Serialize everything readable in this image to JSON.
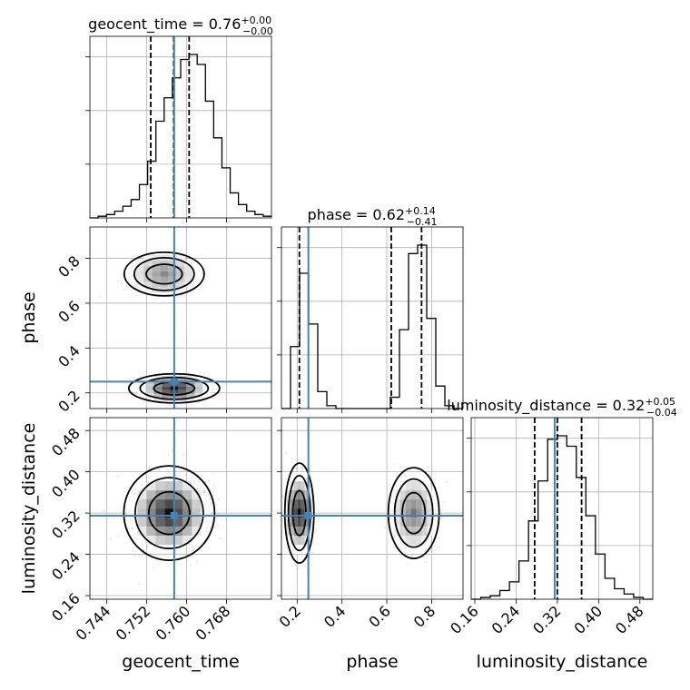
{
  "chart_data": {
    "type": "corner",
    "parameters": [
      "geocent_time",
      "phase",
      "luminosity_distance"
    ],
    "truth": {
      "geocent_time": 0.7575,
      "phase": 0.25,
      "luminosity_distance": 0.315
    },
    "titles": [
      {
        "param": "geocent_time",
        "text": "geocent_time = 0.76",
        "sup": "+0.00",
        "sub": "−0.00"
      },
      {
        "param": "phase",
        "text": "phase = 0.62",
        "sup": "+0.14",
        "sub": "−0.41"
      },
      {
        "param": "luminosity_distance",
        "text": "luminosity_distance = 0.32",
        "sup": "+0.05",
        "sub": "−0.04"
      }
    ],
    "ranges": {
      "geocent_time": [
        0.7406,
        0.777
      ],
      "phase": [
        0.13,
        0.94
      ],
      "luminosity_distance": [
        0.153,
        0.505
      ]
    },
    "ticks": {
      "geocent_time": [
        "0.744",
        "0.752",
        "0.760",
        "0.768"
      ],
      "phase": [
        "0.2",
        "0.4",
        "0.6",
        "0.8"
      ],
      "luminosity_distance": [
        "0.16",
        "0.24",
        "0.32",
        "0.40",
        "0.48"
      ]
    },
    "quantiles": {
      "geocent_time": [
        0.7528,
        0.7574,
        0.7605
      ],
      "phase": [
        0.21,
        0.62,
        0.755
      ],
      "luminosity_distance": [
        0.276,
        0.32,
        0.367
      ]
    },
    "histograms": {
      "geocent_time": {
        "range": [
          0.7406,
          0.777
        ],
        "counts": [
          0,
          1,
          2,
          4,
          7,
          11,
          20,
          34,
          58,
          72,
          84,
          95,
          98,
          92,
          70,
          48,
          30,
          15,
          8,
          4,
          2,
          1
        ]
      },
      "phase": {
        "range": [
          0.13,
          0.94
        ],
        "counts": [
          0,
          22,
          48,
          30,
          6,
          1,
          0,
          0,
          0,
          0,
          0,
          0,
          4,
          28,
          55,
          58,
          32,
          8,
          1,
          0
        ]
      },
      "luminosity_distance": {
        "range": [
          0.153,
          0.505
        ],
        "counts": [
          0,
          1,
          2,
          5,
          10,
          22,
          45,
          68,
          92,
          94,
          88,
          70,
          48,
          26,
          12,
          6,
          3,
          1,
          0
        ]
      }
    },
    "x_labels": [
      "geocent_time",
      "phase",
      "luminosity_distance"
    ],
    "y_labels": [
      "phase",
      "luminosity_distance"
    ],
    "grid": true
  }
}
